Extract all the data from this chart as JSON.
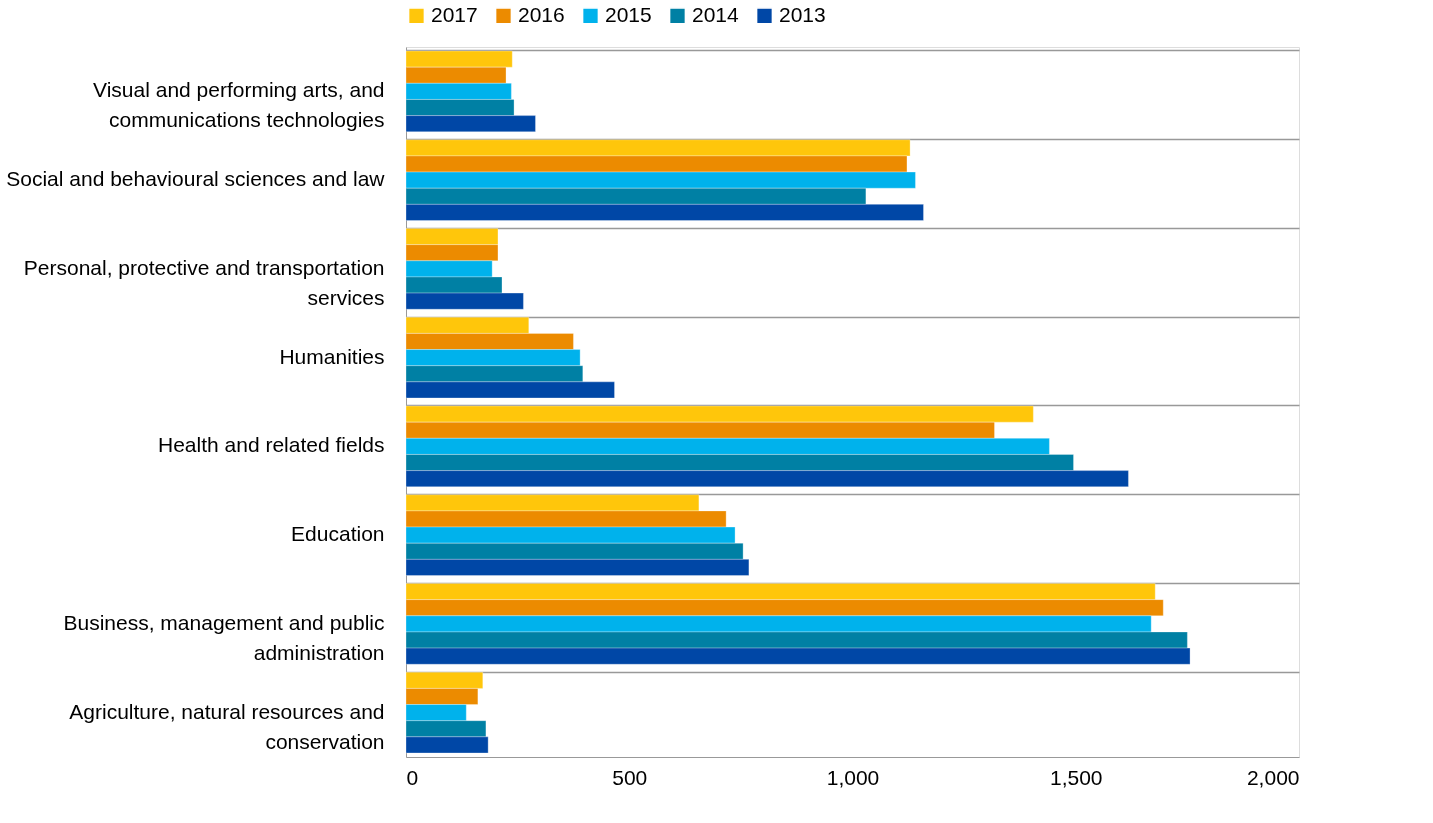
{
  "chart_data": {
    "type": "bar",
    "orientation": "horizontal",
    "categories": [
      "Visual and performing arts, and communications technologies",
      "Social and behavioural sciences and law",
      "Personal, protective and transportation services",
      "Humanities",
      "Health and related fields",
      "Education",
      "Business, management and public administration",
      "Agriculture, natural resources and conservation"
    ],
    "series": [
      {
        "name": "2017",
        "color": "#ffc60b",
        "values": [
          238,
          1129,
          206,
          275,
          1405,
          656,
          1678,
          172
        ]
      },
      {
        "name": "2016",
        "color": "#ec8b00",
        "values": [
          224,
          1122,
          206,
          375,
          1318,
          717,
          1696,
          161
        ]
      },
      {
        "name": "2015",
        "color": "#00b2ec",
        "values": [
          236,
          1141,
          193,
          390,
          1441,
          737,
          1669,
          135
        ]
      },
      {
        "name": "2014",
        "color": "#0080a4",
        "values": [
          242,
          1030,
          215,
          396,
          1495,
          755,
          1750,
          179
        ]
      },
      {
        "name": "2013",
        "color": "#0047a6",
        "values": [
          290,
          1159,
          263,
          467,
          1618,
          768,
          1756,
          184
        ]
      }
    ],
    "xlim": [
      0,
      2000
    ],
    "xticks": [
      0,
      500,
      {
        "value": 1000,
        "label": "1,000"
      },
      {
        "value": 1500,
        "label": "1,500"
      },
      {
        "value": 2000,
        "label": "2,000"
      }
    ],
    "grid": "y",
    "legend": "top"
  }
}
